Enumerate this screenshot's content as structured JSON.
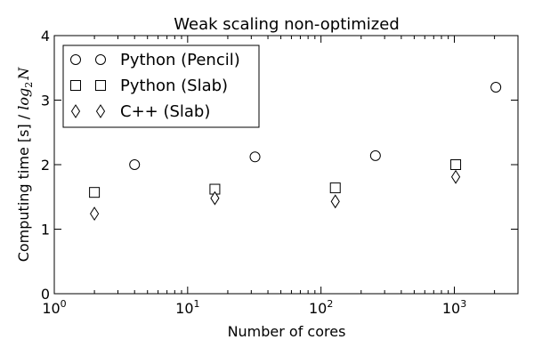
{
  "chart_data": {
    "type": "scatter",
    "title": "Weak scaling non-optimized",
    "xlabel": "Number of cores",
    "ylabel_prefix": "Computing time [s] / ",
    "ylabel_log": "log",
    "ylabel_base": "2",
    "ylabel_var": "N",
    "xscale": "log",
    "xlim": [
      1,
      3000
    ],
    "ylim": [
      0,
      4
    ],
    "grid": false,
    "legend_position": "upper-left",
    "x_ticks": [
      {
        "value": 1,
        "base": "10",
        "exp": "0"
      },
      {
        "value": 10,
        "base": "10",
        "exp": "1"
      },
      {
        "value": 100,
        "base": "10",
        "exp": "2"
      },
      {
        "value": 1000,
        "base": "10",
        "exp": "3"
      }
    ],
    "y_ticks": [
      "0",
      "1",
      "2",
      "3",
      "4"
    ],
    "series": [
      {
        "name": "Python (Pencil)",
        "marker": "circle",
        "x": [
          4,
          32,
          256,
          2048
        ],
        "y": [
          2.0,
          2.12,
          2.14,
          3.2
        ]
      },
      {
        "name": "Python (Slab)",
        "marker": "square",
        "x": [
          2,
          16,
          128,
          1024
        ],
        "y": [
          1.57,
          1.62,
          1.64,
          2.0
        ]
      },
      {
        "name": "C++ (Slab)",
        "marker": "diamond",
        "x": [
          2,
          16,
          128,
          1024
        ],
        "y": [
          1.24,
          1.48,
          1.43,
          1.81
        ]
      }
    ]
  }
}
